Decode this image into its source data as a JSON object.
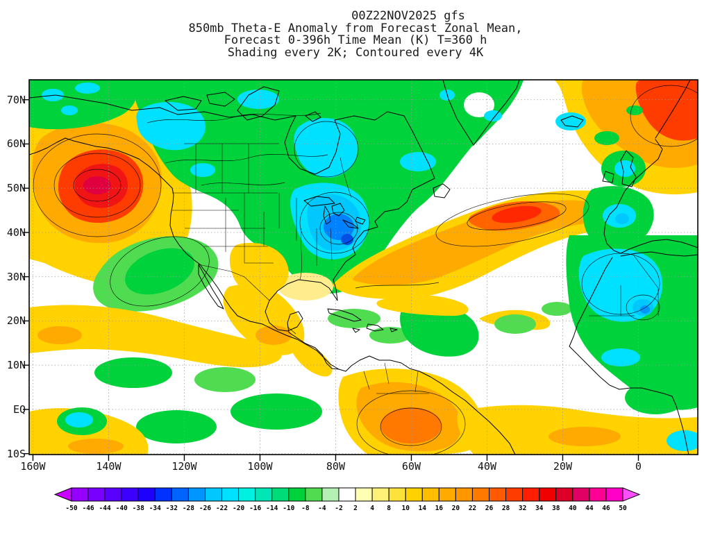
{
  "title": {
    "line1": "00Z22NOV2025 gfs",
    "line2": "850mb Theta-E Anomaly from Forecast Zonal Mean,",
    "line3": "Forecast 0-396h Time Mean (K) T=360 h",
    "line4": "Shading every 2K; Contoured every 4K"
  },
  "map": {
    "lat_labels": [
      "70N",
      "60N",
      "50N",
      "40N",
      "30N",
      "20N",
      "10N",
      "EQ",
      "10S"
    ],
    "lon_labels": [
      "160W",
      "140W",
      "120W",
      "100W",
      "80W",
      "60W",
      "40W",
      "20W",
      "0"
    ]
  },
  "colorbar": {
    "tick_labels": [
      "-50",
      "-46",
      "-44",
      "-40",
      "-38",
      "-34",
      "-32",
      "-28",
      "-26",
      "-22",
      "-20",
      "-16",
      "-14",
      "-10",
      "-8",
      "-4",
      "-2",
      "2",
      "4",
      "8",
      "10",
      "14",
      "16",
      "20",
      "22",
      "26",
      "28",
      "32",
      "34",
      "38",
      "40",
      "44",
      "46",
      "50"
    ],
    "colors": [
      "#c800ff",
      "#9600ff",
      "#7800ff",
      "#5a00ff",
      "#3c00ff",
      "#1e00ff",
      "#0032ff",
      "#0064ff",
      "#0096ff",
      "#00c8ff",
      "#00e1ff",
      "#00f0e1",
      "#00e6b4",
      "#00dc78",
      "#00d23c",
      "#50dc50",
      "#b4f0b4",
      "#ffffff",
      "#ffffb4",
      "#fff078",
      "#ffe13c",
      "#ffd200",
      "#ffbe00",
      "#ffaa00",
      "#ff9600",
      "#ff7800",
      "#ff5a00",
      "#ff3c00",
      "#ff1e00",
      "#f00000",
      "#dc0028",
      "#e10064",
      "#ff0096",
      "#ff00c8",
      "#ff50ff"
    ]
  },
  "chart_data": {
    "type": "heatmap",
    "title": "850mb Theta-E Anomaly from Forecast Zonal Mean (K), Forecast 0-396h Time Mean, GFS 00Z22NOV2025",
    "xlabel": "longitude",
    "ylabel": "latitude",
    "x_ticks": [
      "160W",
      "140W",
      "120W",
      "100W",
      "80W",
      "60W",
      "40W",
      "20W",
      "0"
    ],
    "y_ticks": [
      "70N",
      "60N",
      "50N",
      "40N",
      "30N",
      "20N",
      "10N",
      "EQ",
      "10S"
    ],
    "shading_levels_K": [
      -50,
      -46,
      -44,
      -40,
      -38,
      -34,
      -32,
      -28,
      -26,
      -22,
      -20,
      -16,
      -14,
      -10,
      -8,
      -4,
      -2,
      2,
      4,
      8,
      10,
      14,
      16,
      20,
      22,
      26,
      28,
      32,
      34,
      38,
      40,
      44,
      46,
      50
    ],
    "shading_interval_K": 2,
    "contour_interval_K": 4,
    "notable_features": [
      {
        "sign": "warm",
        "location": "Gulf of Alaska (~145W, 50N)",
        "approx_peak_K": 42
      },
      {
        "sign": "cold",
        "location": "Canada, Great Lakes and eastern US (~90W-70W, 35N-65N)",
        "approx_peak_K": -30
      },
      {
        "sign": "warm",
        "location": "central North Atlantic (~45W, 50N)",
        "approx_peak_K": 30
      },
      {
        "sign": "warm",
        "location": "Norwegian Sea / NE Atlantic (top right)",
        "approx_peak_K": 32
      },
      {
        "sign": "cold",
        "location": "Northwest Africa (~5W, 27N)",
        "approx_peak_K": -20
      },
      {
        "sign": "warm",
        "location": "northern South America (~65W, EQ)",
        "approx_peak_K": 20
      },
      {
        "sign": "warm",
        "location": "subtropical east Pacific band (~10N-20N)",
        "approx_peak_K": 12
      }
    ]
  }
}
